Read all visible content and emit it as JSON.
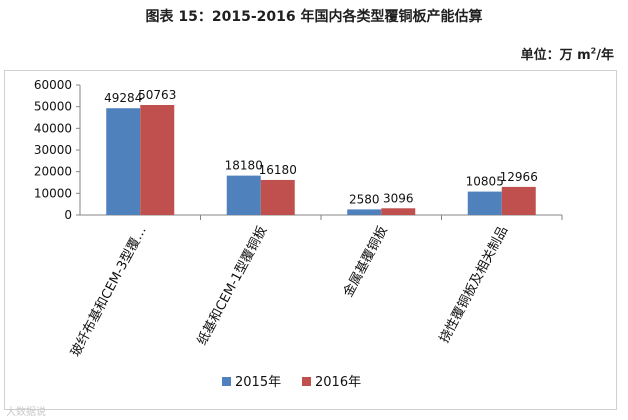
{
  "header": {
    "title": "图表 15：2015-2016 年国内各类型覆铜板产能估算",
    "unit_prefix": "单位：万 m",
    "unit_sup": "2",
    "unit_suffix": "/年"
  },
  "watermark": "大数据说",
  "colors": {
    "s2015": "#4f81bd",
    "s2016": "#c0504d",
    "axis": "#868686"
  },
  "chart_data": {
    "type": "bar",
    "categories": [
      "玻纤布基和CEM-3型覆…",
      "纸基和CEM-1型覆铜板",
      "金属基覆铜板",
      "挠性覆铜板及相关制品"
    ],
    "series": [
      {
        "name": "2015年",
        "values": [
          49284,
          18180,
          2580,
          10805
        ]
      },
      {
        "name": "2016年",
        "values": [
          50763,
          16180,
          3096,
          12966
        ]
      }
    ],
    "data_labels": [
      [
        "49284",
        "18180",
        "2580",
        "10805"
      ],
      [
        "50763",
        "16180",
        "3096",
        "12966"
      ]
    ],
    "ylim": [
      0,
      60000
    ],
    "yticks": [
      0,
      10000,
      20000,
      30000,
      40000,
      50000,
      60000
    ],
    "grid": false,
    "legend": "bottom"
  }
}
